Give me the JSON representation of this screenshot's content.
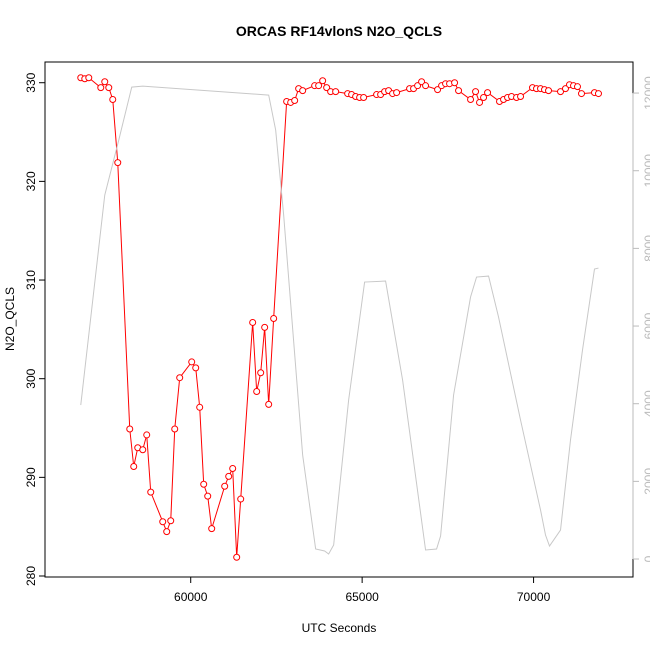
{
  "chart_data": {
    "type": "line",
    "title": "ORCAS RF14vlonS N2O_QCLS",
    "x_label": "UTC Seconds",
    "y_label": "N2O_QCLS",
    "xlim": [
      55750,
      72900
    ],
    "xticks": [
      60000,
      65000,
      70000
    ],
    "ylim": [
      279.9,
      332.1
    ],
    "yticks": [
      280,
      290,
      300,
      310,
      320,
      330
    ],
    "y2lim": [
      -463,
      12800
    ],
    "y2ticks": [
      0,
      2000,
      4000,
      6000,
      8000,
      10000,
      12000
    ],
    "y2_color": "#bbbbbb",
    "series": [
      {
        "color": "#ff0000",
        "markers": true,
        "x": [
          56793,
          56910,
          57027,
          57377,
          57493,
          57610,
          57726,
          57872,
          58222,
          58338,
          58455,
          58601,
          58717,
          58834,
          59184,
          59300,
          59417,
          59534,
          59679,
          60029,
          60146,
          60262,
          60379,
          60496,
          60612,
          60991,
          61108,
          61224,
          61341,
          61458,
          61807,
          61924,
          62041,
          62157,
          62274,
          62419,
          62798,
          62915,
          63032,
          63148,
          63265,
          63615,
          63731,
          63848,
          63965,
          64081,
          64227,
          64577,
          64693,
          64810,
          64926,
          65043,
          65422,
          65539,
          65655,
          65772,
          65888,
          66005,
          66384,
          66500,
          66617,
          66734,
          66850,
          67200,
          67317,
          67433,
          67550,
          67696,
          67812,
          68162,
          68308,
          68424,
          68541,
          68658,
          69007,
          69124,
          69241,
          69357,
          69503,
          69620,
          69969,
          70086,
          70203,
          70319,
          70436,
          70786,
          70931,
          71048,
          71165,
          71281,
          71398,
          71777,
          71893
        ],
        "values": [
          330.5,
          330.4,
          330.5,
          329.5,
          330.1,
          329.5,
          328.3,
          321.9,
          294.9,
          291.1,
          293.0,
          292.8,
          294.3,
          288.5,
          285.5,
          284.5,
          285.6,
          294.9,
          300.1,
          301.7,
          301.1,
          297.1,
          289.3,
          288.1,
          284.8,
          289.1,
          290.1,
          290.9,
          281.9,
          287.8,
          305.7,
          298.7,
          300.6,
          305.2,
          297.4,
          306.1,
          328.1,
          328.0,
          328.2,
          329.4,
          329.2,
          329.7,
          329.7,
          330.2,
          329.5,
          329.1,
          329.1,
          328.9,
          328.8,
          328.6,
          328.5,
          328.5,
          328.8,
          328.8,
          329.1,
          329.2,
          328.9,
          329.0,
          329.4,
          329.4,
          329.7,
          330.1,
          329.7,
          329.3,
          329.7,
          329.9,
          329.9,
          330.0,
          329.2,
          328.3,
          329.1,
          328.0,
          328.5,
          329.0,
          328.1,
          328.3,
          328.5,
          328.6,
          328.5,
          328.6,
          329.5,
          329.4,
          329.4,
          329.3,
          329.2,
          329.1,
          329.4,
          329.8,
          329.7,
          329.6,
          328.9,
          329.0,
          328.9
        ]
      },
      {
        "color": "#c8c8c8",
        "axis": "y2",
        "markers": false,
        "x": [
          56793,
          57493,
          57901,
          58280,
          58601,
          62274,
          62478,
          62711,
          63265,
          63644,
          63906,
          64023,
          64169,
          64606,
          65072,
          65684,
          66180,
          66850,
          67171,
          67288,
          67667,
          68162,
          68337,
          68687,
          68978,
          69620,
          70203,
          70348,
          70465,
          70786,
          71077,
          71427,
          71777,
          71893
        ],
        "values": [
          3966,
          9373,
          10789,
          12154,
          12180,
          11948,
          11047,
          8858,
          2678,
          258,
          206,
          129,
          361,
          4094,
          7133,
          7159,
          4609,
          232,
          258,
          592,
          4223,
          6747,
          7262,
          7287,
          6232,
          3579,
          1262,
          618,
          335,
          747,
          3064,
          5382,
          7468,
          7493
        ]
      }
    ]
  }
}
